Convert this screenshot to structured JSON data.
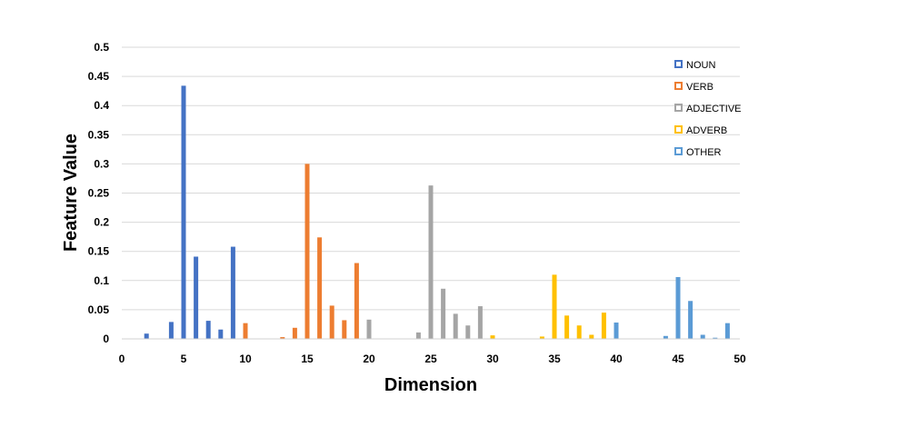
{
  "chart_data": {
    "type": "bar",
    "title": "",
    "xlabel": "Dimension",
    "ylabel": "Feature Value",
    "xlim": [
      0,
      50
    ],
    "ylim": [
      0,
      0.5
    ],
    "xticks": [
      "0",
      "5",
      "10",
      "15",
      "20",
      "25",
      "30",
      "35",
      "40",
      "45",
      "50"
    ],
    "yticks": [
      "0",
      "0.05",
      "0.1",
      "0.15",
      "0.2",
      "0.25",
      "0.3",
      "0.35",
      "0.4",
      "0.45",
      "0.5"
    ],
    "grid": true,
    "legend_position": "top-right",
    "series": [
      {
        "name": "NOUN",
        "color": "#4472C4",
        "points": [
          [
            2,
            0.009
          ],
          [
            4,
            0.029
          ],
          [
            5,
            0.434
          ],
          [
            6,
            0.141
          ],
          [
            7,
            0.031
          ],
          [
            8,
            0.016
          ],
          [
            9,
            0.158
          ]
        ]
      },
      {
        "name": "VERB",
        "color": "#ED7D31",
        "points": [
          [
            10,
            0.027
          ],
          [
            13,
            0.003
          ],
          [
            14,
            0.019
          ],
          [
            15,
            0.3
          ],
          [
            16,
            0.174
          ],
          [
            17,
            0.057
          ],
          [
            18,
            0.032
          ],
          [
            19,
            0.13
          ]
        ]
      },
      {
        "name": "ADJECTIVE",
        "color": "#A5A5A5",
        "points": [
          [
            20,
            0.033
          ],
          [
            24,
            0.011
          ],
          [
            25,
            0.263
          ],
          [
            26,
            0.086
          ],
          [
            27,
            0.043
          ],
          [
            28,
            0.023
          ],
          [
            29,
            0.056
          ]
        ]
      },
      {
        "name": "ADVERB",
        "color": "#FFC000",
        "points": [
          [
            30,
            0.006
          ],
          [
            34,
            0.004
          ],
          [
            35,
            0.11
          ],
          [
            36,
            0.04
          ],
          [
            37,
            0.023
          ],
          [
            38,
            0.007
          ],
          [
            39,
            0.045
          ]
        ]
      },
      {
        "name": "OTHER",
        "color": "#5B9BD5",
        "points": [
          [
            40,
            0.028
          ],
          [
            44,
            0.005
          ],
          [
            45,
            0.106
          ],
          [
            46,
            0.065
          ],
          [
            47,
            0.007
          ],
          [
            48,
            0.002
          ],
          [
            49,
            0.027
          ]
        ]
      }
    ]
  }
}
